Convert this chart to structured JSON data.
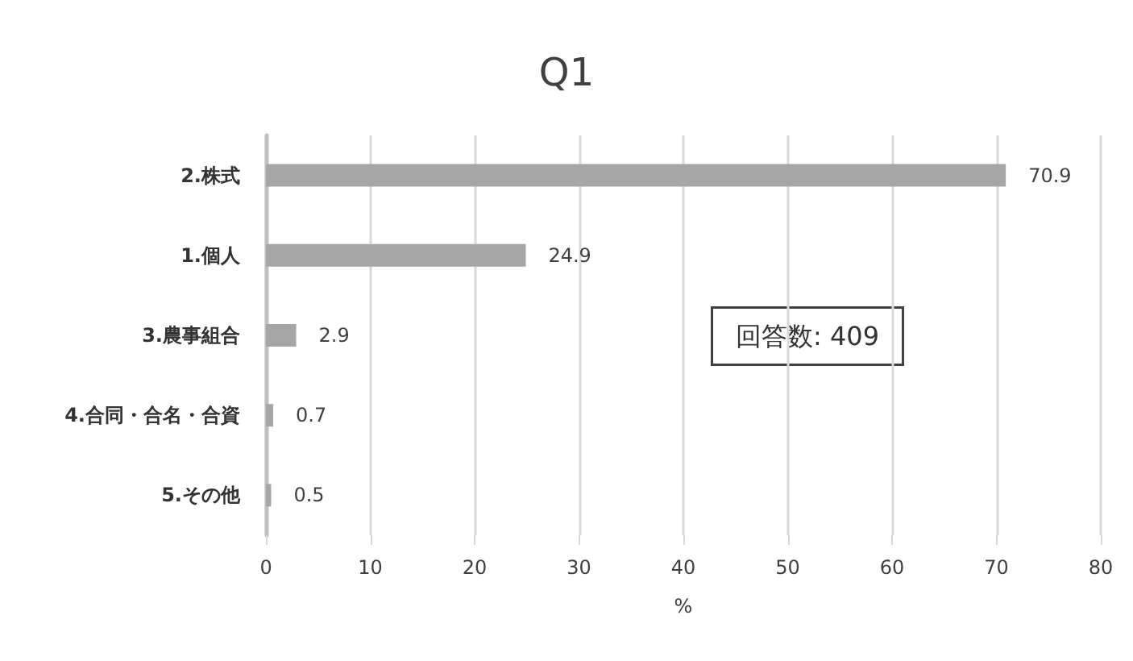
{
  "chart_data": {
    "type": "bar",
    "orientation": "horizontal",
    "title": "Q1",
    "xlabel": "%",
    "categories": [
      "2.株式",
      "1.個人",
      "3.農事組合",
      "4.合同・合名・合資",
      "5.その他"
    ],
    "values": [
      70.9,
      24.9,
      2.9,
      0.7,
      0.5
    ],
    "color": "#a6a6a6",
    "data_labels": true,
    "xlim": [
      0,
      80
    ],
    "xticks": [
      0,
      10,
      20,
      30,
      40,
      50,
      60,
      70,
      80
    ],
    "grid": "x",
    "annotations": [
      "回答数: 409"
    ]
  }
}
